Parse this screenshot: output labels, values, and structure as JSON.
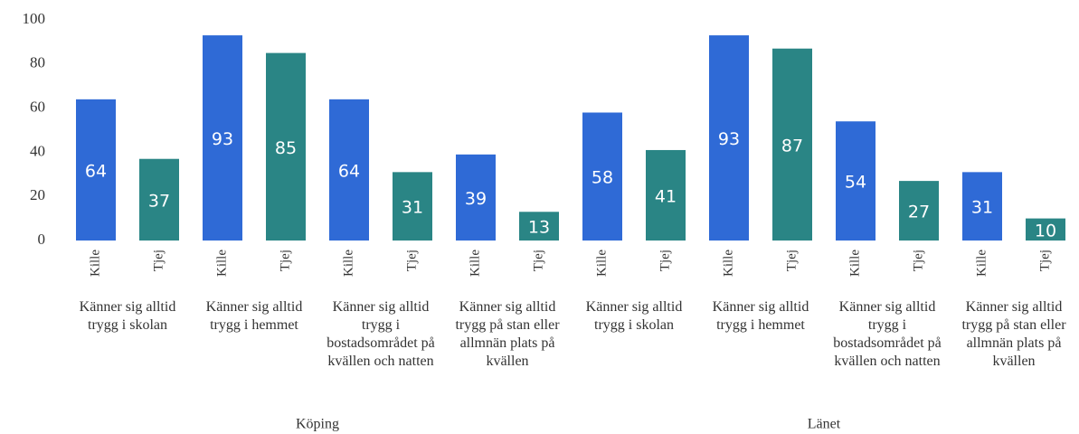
{
  "chart_data": {
    "type": "bar",
    "categories": [
      "Kille",
      "Tjej",
      "Kille",
      "Tjej",
      "Kille",
      "Tjej",
      "Kille",
      "Tjej",
      "Kille",
      "Tjej",
      "Kille",
      "Tjej",
      "Kille",
      "Tjej",
      "Kille",
      "Tjej"
    ],
    "values": [
      64,
      37,
      93,
      85,
      64,
      31,
      39,
      13,
      58,
      41,
      93,
      87,
      54,
      27,
      31,
      10
    ],
    "colors": [
      "#2f6ad6",
      "#2a8585",
      "#2f6ad6",
      "#2a8585",
      "#2f6ad6",
      "#2a8585",
      "#2f6ad6",
      "#2a8585",
      "#2f6ad6",
      "#2a8585",
      "#2f6ad6",
      "#2a8585",
      "#2f6ad6",
      "#2a8585",
      "#2f6ad6",
      "#2a8585"
    ],
    "subgroups": [
      "Känner sig alltid trygg i skolan",
      "Känner sig alltid trygg i hemmet",
      "Känner sig alltid trygg i bostadsområdet på kvällen och natten",
      "Känner sig alltid trygg på stan eller allmnän plats på kvällen",
      "Känner sig alltid trygg i skolan",
      "Känner sig alltid trygg i hemmet",
      "Känner sig alltid trygg i bostadsområdet på kvällen och natten",
      "Känner sig alltid trygg på stan eller allmnän plats på kvällen"
    ],
    "groups": [
      "Köping",
      "Länet"
    ],
    "ylim": [
      0,
      100
    ],
    "yticks": [
      0,
      20,
      40,
      60,
      80,
      100
    ],
    "grid": false
  }
}
